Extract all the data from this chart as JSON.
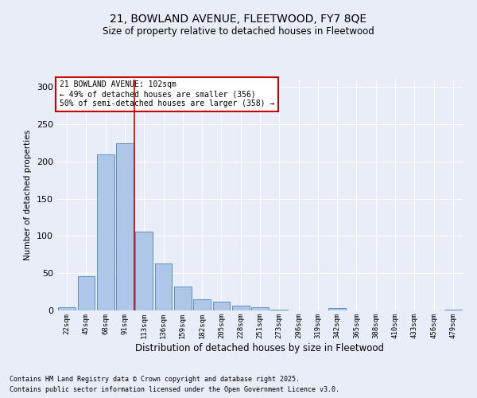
{
  "title_line1": "21, BOWLAND AVENUE, FLEETWOOD, FY7 8QE",
  "title_line2": "Size of property relative to detached houses in Fleetwood",
  "xlabel": "Distribution of detached houses by size in Fleetwood",
  "ylabel": "Number of detached properties",
  "footer_line1": "Contains HM Land Registry data © Crown copyright and database right 2025.",
  "footer_line2": "Contains public sector information licensed under the Open Government Licence v3.0.",
  "annotation_line1": "21 BOWLAND AVENUE: 102sqm",
  "annotation_line2": "← 49% of detached houses are smaller (356)",
  "annotation_line3": "50% of semi-detached houses are larger (358) →",
  "categories": [
    "22sqm",
    "45sqm",
    "68sqm",
    "91sqm",
    "113sqm",
    "136sqm",
    "159sqm",
    "182sqm",
    "205sqm",
    "228sqm",
    "251sqm",
    "273sqm",
    "296sqm",
    "319sqm",
    "342sqm",
    "365sqm",
    "388sqm",
    "410sqm",
    "433sqm",
    "456sqm",
    "479sqm"
  ],
  "values": [
    4,
    46,
    210,
    225,
    106,
    63,
    32,
    15,
    12,
    6,
    4,
    1,
    0,
    0,
    3,
    0,
    0,
    0,
    0,
    0,
    1
  ],
  "bar_color": "#aec6e8",
  "bar_edge_color": "#5a8fc0",
  "redline_x": 3.5,
  "ylim": [
    0,
    310
  ],
  "yticks": [
    0,
    50,
    100,
    150,
    200,
    250,
    300
  ],
  "bg_color": "#e8edf7",
  "grid_color": "#ffffff",
  "annotation_box_color": "#ffffff",
  "annotation_box_edge": "#cc0000",
  "redline_color": "#cc0000"
}
